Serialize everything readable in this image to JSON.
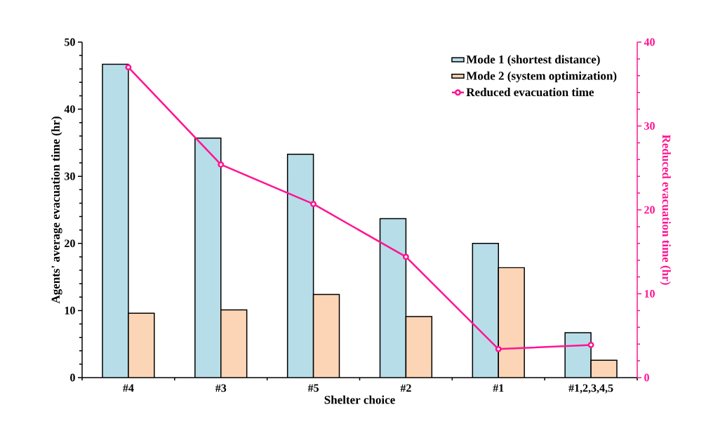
{
  "chart_data": {
    "type": "bar",
    "xlabel": "Shelter choice",
    "ylabel": "Agents' average evacuation time (hr)",
    "y2label": "Reduced evacuation time (hr)",
    "categories": [
      "#4",
      "#3",
      "#5",
      "#2",
      "#1",
      "#1,2,3,4,5"
    ],
    "series": [
      {
        "name": "Mode 1 (shortest distance)",
        "color": "#b7dde8",
        "values": [
          46.7,
          35.7,
          33.3,
          23.7,
          20.0,
          6.7
        ]
      },
      {
        "name": "Mode 2 (system optimization)",
        "color": "#fbd5b5",
        "values": [
          9.6,
          10.1,
          12.4,
          9.1,
          16.4,
          2.6
        ]
      },
      {
        "name": "Reduced evacuation time",
        "type": "line",
        "axis": "y2",
        "color": "#ff1493",
        "marker": "circle",
        "line_style": "solid",
        "values": [
          37.0,
          25.4,
          20.7,
          14.4,
          3.4,
          3.9
        ]
      }
    ],
    "ylim": [
      0,
      50
    ],
    "yticks": [
      0,
      10,
      20,
      30,
      40,
      50
    ],
    "y2lim": [
      0,
      40
    ],
    "y2ticks": [
      0,
      10,
      20,
      30,
      40
    ],
    "grid": false,
    "legend": "top right"
  }
}
